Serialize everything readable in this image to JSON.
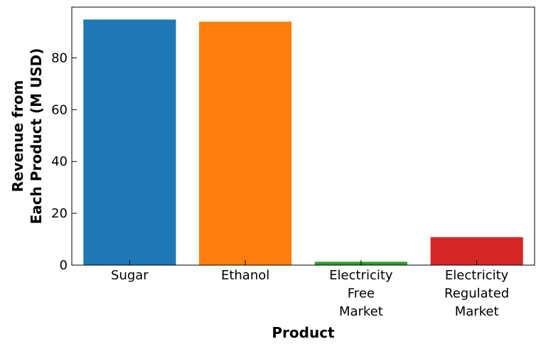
{
  "chart_data": {
    "type": "bar",
    "categories": [
      [
        "Sugar"
      ],
      [
        "Ethanol"
      ],
      [
        "Electricity",
        "Free",
        "Market"
      ],
      [
        "Electricity",
        "Regulated",
        "Market"
      ]
    ],
    "values": [
      94.8,
      94.0,
      1.3,
      10.8
    ],
    "colors": [
      "#1f77b4",
      "#ff7f0e",
      "#2ca02c",
      "#d62728"
    ],
    "xlabel": "Product",
    "ylabel": [
      "Revenue from",
      "Each Product (M USD)"
    ],
    "ylim": [
      0,
      99.6
    ],
    "yticks": [
      0,
      20,
      40,
      60,
      80
    ],
    "grid": false
  }
}
